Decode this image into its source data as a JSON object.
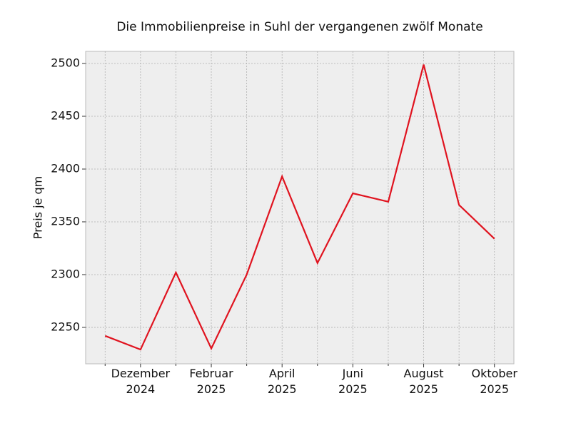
{
  "chart_data": {
    "type": "line",
    "title": "Die Immobilienpreise in Suhl der vergangenen zwölf Monate",
    "y_label": "Preis je qm",
    "categories": [
      null,
      "Dezember\n2024",
      null,
      "Februar\n2025",
      null,
      "April\n2025",
      null,
      "Juni\n2025",
      null,
      "August\n2025",
      null,
      "Oktober\n2025"
    ],
    "series": [
      {
        "name": "Preis je qm",
        "color": "#e0131f",
        "values": [
          2242,
          2229,
          2302,
          2230,
          2300,
          2393,
          2311,
          2377,
          2369,
          2499,
          2366,
          2334
        ]
      }
    ],
    "ylim": [
      2215.5,
      2511.5
    ],
    "yticks": [
      2250,
      2300,
      2350,
      2400,
      2450,
      2500
    ],
    "grid": true
  }
}
